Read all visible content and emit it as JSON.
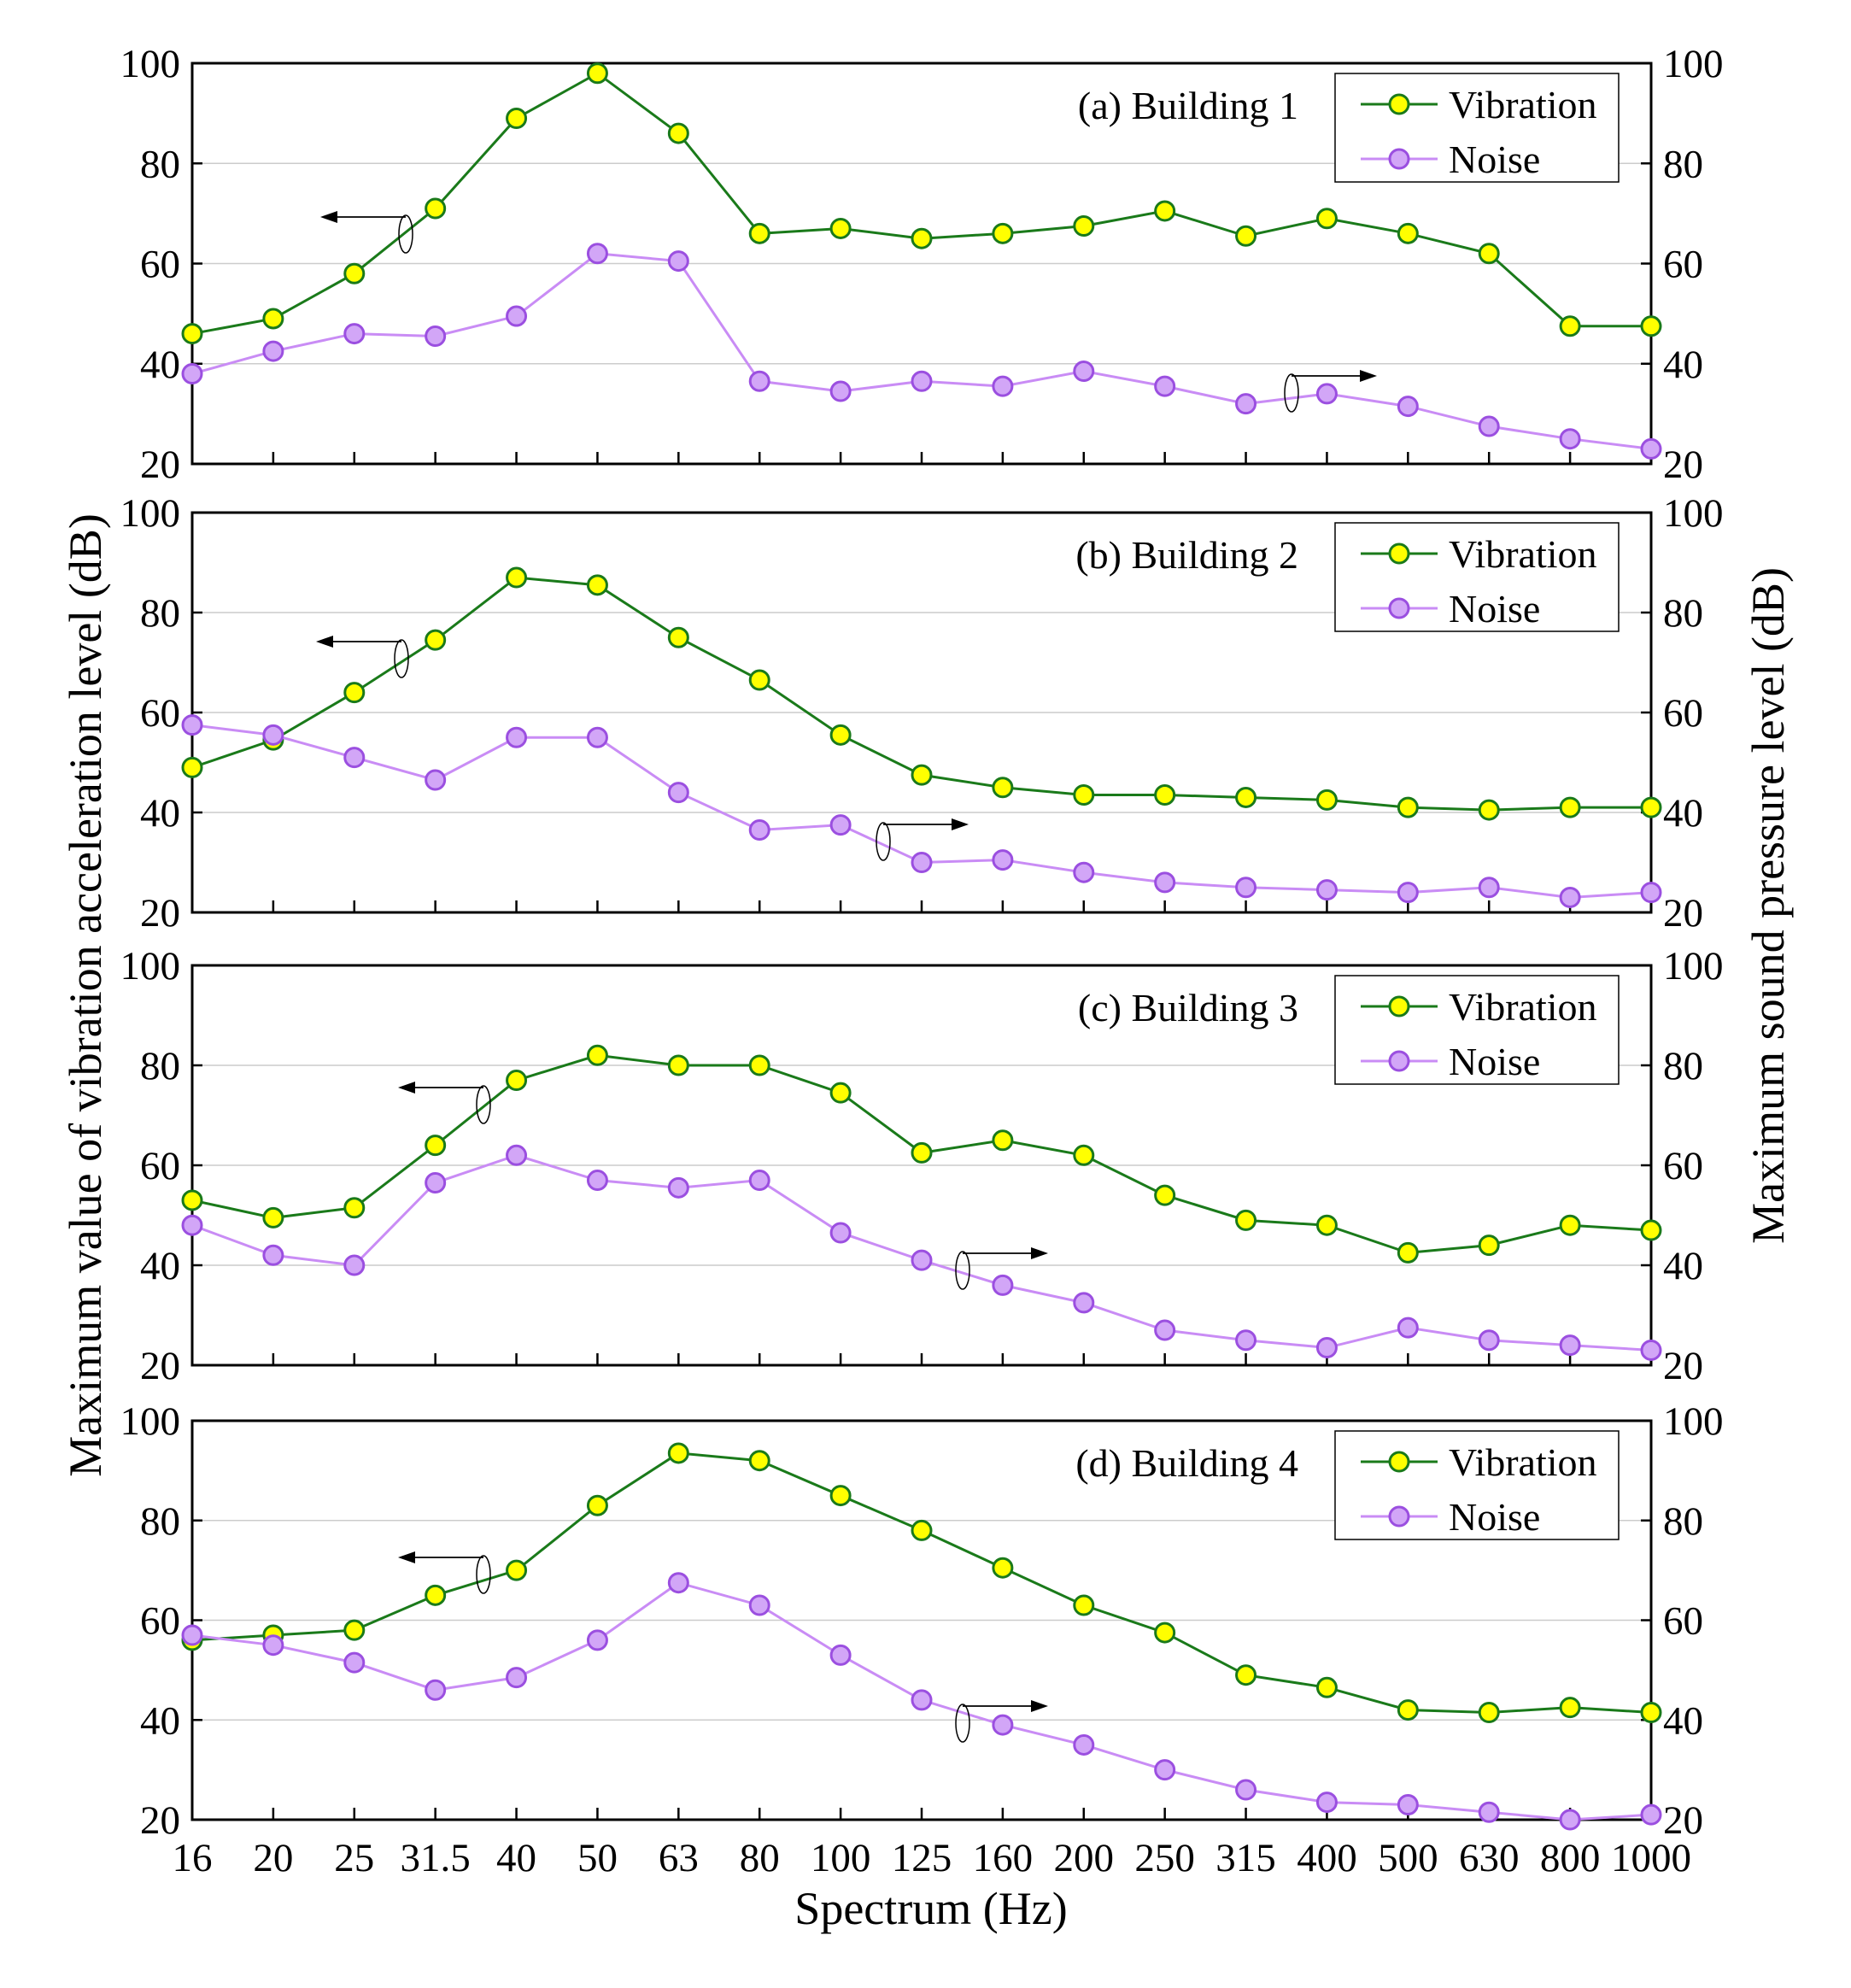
{
  "chart_data": {
    "type": "line",
    "x": [
      "16",
      "20",
      "25",
      "31.5",
      "40",
      "50",
      "63",
      "80",
      "100",
      "125",
      "160",
      "200",
      "250",
      "315",
      "400",
      "500",
      "630",
      "800",
      "1000"
    ],
    "xlabel": "Spectrum (Hz)",
    "ylabel_left": "Maximum value of vibration acceleration level (dB)",
    "ylabel_right": "Maximum sound pressure level (dB)",
    "ylim": [
      20,
      100
    ],
    "yticks": [
      "20",
      "40",
      "60",
      "80",
      "100"
    ],
    "grid": "horizontal",
    "legend_position": "top-right",
    "colors": {
      "vibration_line": "#1a7a1a",
      "vibration_marker": "#ffff00",
      "noise_line": "#c98cf5",
      "noise_marker": "#d2a6f7",
      "noise_marker_edge": "#9b4fe0",
      "grid": "#cccccc"
    },
    "panels": [
      {
        "title": "(a) Building 1",
        "series": [
          {
            "name": "Vibration",
            "axis": "left",
            "values": [
              46,
              49,
              58,
              71,
              89,
              98,
              86,
              66,
              67,
              65,
              66,
              67.5,
              70.5,
              65.5,
              69,
              66,
              62,
              47.5,
              47.5
            ]
          },
          {
            "name": "Noise",
            "axis": "right",
            "values": [
              38,
              42.5,
              46,
              45.5,
              49.5,
              62,
              60.5,
              36.5,
              34.5,
              36.5,
              35.5,
              38.5,
              35.5,
              32,
              34,
              31.5,
              27.5,
              25,
              23
            ]
          }
        ]
      },
      {
        "title": "(b) Building 2",
        "series": [
          {
            "name": "Vibration",
            "axis": "left",
            "values": [
              49,
              54.5,
              64,
              74.5,
              87,
              85.5,
              75,
              66.5,
              55.5,
              47.5,
              45,
              43.5,
              43.5,
              43,
              42.5,
              41,
              40.5,
              41,
              41
            ]
          },
          {
            "name": "Noise",
            "axis": "right",
            "values": [
              57.5,
              55.5,
              51,
              46.5,
              55,
              55,
              44,
              36.5,
              37.5,
              30,
              30.5,
              28,
              26,
              25,
              24.5,
              24,
              25,
              23,
              24
            ]
          }
        ]
      },
      {
        "title": "(c) Building 3",
        "series": [
          {
            "name": "Vibration",
            "axis": "left",
            "values": [
              53,
              49.5,
              51.5,
              64,
              77,
              82,
              80,
              80,
              74.5,
              62.5,
              65,
              62,
              54,
              49,
              48,
              42.5,
              44,
              48,
              47
            ]
          },
          {
            "name": "Noise",
            "axis": "right",
            "values": [
              48,
              42,
              40,
              56.5,
              62,
              57,
              55.5,
              57,
              46.5,
              41,
              36,
              32.5,
              27,
              25,
              23.5,
              27.5,
              25,
              24,
              23
            ]
          }
        ]
      },
      {
        "title": "(d) Building 4",
        "series": [
          {
            "name": "Vibration",
            "axis": "left",
            "values": [
              56,
              57,
              58,
              65,
              70,
              83,
              93.5,
              92,
              85,
              78,
              70.5,
              63,
              57.5,
              49,
              46.5,
              42,
              41.5,
              42.5,
              41.5
            ]
          },
          {
            "name": "Noise",
            "axis": "right",
            "values": [
              57,
              55,
              51.5,
              46,
              48.5,
              56,
              67.5,
              63,
              53,
              44,
              39,
              35,
              30,
              26,
              23.5,
              23,
              21.5,
              20,
              21
            ]
          }
        ]
      }
    ],
    "annotations": "arrows indicate series axis: left arrow = left axis (vibration), right arrow = right axis (noise)"
  }
}
